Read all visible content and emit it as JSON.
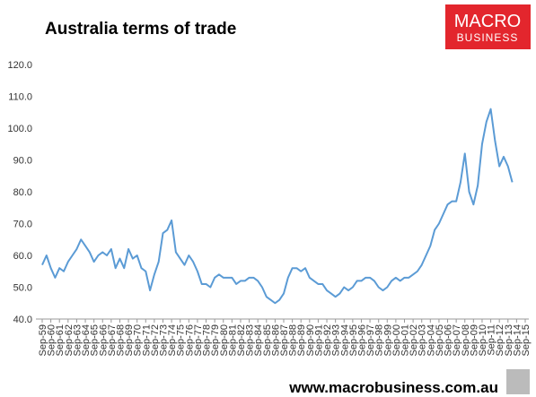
{
  "chart_data": {
    "type": "line",
    "title": "Australia terms of trade",
    "categories": [
      "Sep-59",
      null,
      "Sep-60",
      null,
      "Sep-61",
      null,
      "Sep-62",
      null,
      "Sep-63",
      null,
      "Sep-64",
      null,
      "Sep-65",
      null,
      "Sep-66",
      null,
      "Sep-67",
      null,
      "Sep-68",
      null,
      "Sep-69",
      null,
      "Sep-70",
      null,
      "Sep-71",
      null,
      "Sep-72",
      null,
      "Sep-73",
      null,
      "Sep-74",
      null,
      "Sep-75",
      null,
      "Sep-76",
      null,
      "Sep-77",
      null,
      "Sep-78",
      null,
      "Sep-79",
      null,
      "Sep-80",
      null,
      "Sep-81",
      null,
      "Sep-82",
      null,
      "Sep-83",
      null,
      "Sep-84",
      null,
      "Sep-85",
      null,
      "Sep-86",
      null,
      "Sep-87",
      null,
      "Sep-88",
      null,
      "Sep-89",
      null,
      "Sep-90",
      null,
      "Sep-91",
      null,
      "Sep-92",
      null,
      "Sep-93",
      null,
      "Sep-94",
      null,
      "Sep-95",
      null,
      "Sep-96",
      null,
      "Sep-97",
      null,
      "Sep-98",
      null,
      "Sep-99",
      null,
      "Sep-00",
      null,
      "Sep-01",
      null,
      "Sep-02",
      null,
      "Sep-03",
      null,
      "Sep-04",
      null,
      "Sep-05",
      null,
      "Sep-06",
      null,
      "Sep-07",
      null,
      "Sep-08",
      null,
      "Sep-09",
      null,
      "Sep-10",
      null,
      "Sep-11",
      null,
      "Sep-12",
      null,
      "Sep-13",
      null,
      "Sep-14",
      null,
      "Sep-15"
    ],
    "values": [
      57,
      60,
      56,
      53,
      56,
      55,
      58,
      60,
      62,
      65,
      63,
      61,
      58,
      60,
      61,
      60,
      62,
      56,
      59,
      56,
      62,
      59,
      60,
      56,
      55,
      49,
      54,
      58,
      67,
      68,
      71,
      61,
      59,
      57,
      60,
      58,
      55,
      51,
      51,
      50,
      53,
      54,
      53,
      53,
      53,
      51,
      52,
      52,
      53,
      53,
      52,
      50,
      47,
      46,
      45,
      46,
      48,
      53,
      56,
      56,
      55,
      56,
      53,
      52,
      51,
      51,
      49,
      48,
      47,
      48,
      50,
      49,
      50,
      52,
      52,
      53,
      53,
      52,
      50,
      49,
      50,
      52,
      53,
      52,
      53,
      53,
      54,
      55,
      57,
      60,
      63,
      68,
      70,
      73,
      76,
      77,
      77,
      83,
      92,
      80,
      76,
      82,
      95,
      102,
      106,
      96,
      88,
      91,
      88,
      83,
      null,
      null,
      null
    ],
    "color": "#5b9bd5",
    "ylim": [
      40,
      120
    ],
    "yticks": [
      {
        "value": 40,
        "label": "40.0"
      },
      {
        "value": 50,
        "label": "50.0"
      },
      {
        "value": 60,
        "label": "60.0"
      },
      {
        "value": 70,
        "label": "70.0"
      },
      {
        "value": 80,
        "label": "80.0"
      },
      {
        "value": 90,
        "label": "90.0"
      },
      {
        "value": 100,
        "label": "100.0"
      },
      {
        "value": 110,
        "label": "110.0"
      },
      {
        "value": 120,
        "label": "120.0"
      }
    ],
    "grid": false
  },
  "logo": {
    "line1": "MACRO",
    "line2": "BUSINESS"
  },
  "footer": "www.macrobusiness.com.au"
}
